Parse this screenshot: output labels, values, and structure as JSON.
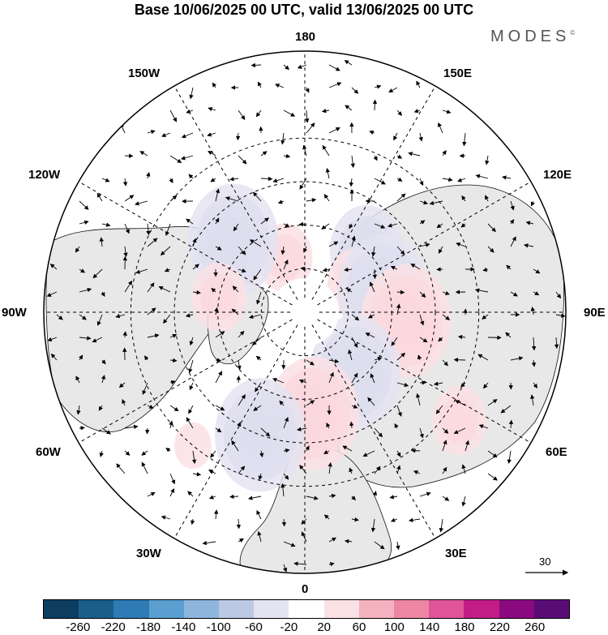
{
  "title": "Base 10/06/2025 00 UTC, valid 13/06/2025 00 UTC",
  "brand": "MODES",
  "brand_mark": "©",
  "longitude_labels": {
    "top": "180",
    "bottom": "0",
    "left": "90W",
    "right": "90E",
    "upper_left_1": "150W",
    "upper_left_2": "120W",
    "upper_right_1": "150E",
    "upper_right_2": "120E",
    "lower_left_1": "60W",
    "lower_left_2": "30W",
    "lower_right_1": "60E",
    "lower_right_2": "30E"
  },
  "reference_vector": {
    "label": "30"
  },
  "colorbar": {
    "colors": [
      "#0d3d5f",
      "#1b5e8c",
      "#2e7bb5",
      "#5a9fd0",
      "#8eb6dc",
      "#bcc8e4",
      "#e4e3f1",
      "#ffffff",
      "#fbe1e4",
      "#f4b2bf",
      "#ec86a3",
      "#e0549a",
      "#c21d87",
      "#8c0a80",
      "#5a0c75"
    ],
    "ticks": [
      "-260",
      "-220",
      "-180",
      "-140",
      "-100",
      "-60",
      "-20",
      "20",
      "60",
      "100",
      "140",
      "180",
      "220",
      "260"
    ]
  },
  "anomalies": [
    {
      "sign": "positive",
      "level": 2,
      "lon": -160,
      "lat": 70
    },
    {
      "sign": "negative",
      "level": 3,
      "lon": 135,
      "lat": 60
    },
    {
      "sign": "negative",
      "level": 4,
      "lon": -135,
      "lat": 55
    },
    {
      "sign": "positive",
      "level": 2,
      "lon": 120,
      "lat": 70
    },
    {
      "sign": "negative",
      "level": 4,
      "lon": 105,
      "lat": 62
    },
    {
      "sign": "positive",
      "level": 4,
      "lon": 85,
      "lat": 55
    },
    {
      "sign": "negative",
      "level": 4,
      "lon": 40,
      "lat": 63
    },
    {
      "sign": "positive",
      "level": 4,
      "lon": 5,
      "lat": 55
    },
    {
      "sign": "negative",
      "level": 4,
      "lon": -20,
      "lat": 45
    },
    {
      "sign": "positive",
      "level": 2,
      "lon": -100,
      "lat": 60
    },
    {
      "sign": "positive",
      "level": 1,
      "lon": -40,
      "lat": 30
    },
    {
      "sign": "positive",
      "level": 2,
      "lon": 55,
      "lat": 25
    }
  ]
}
